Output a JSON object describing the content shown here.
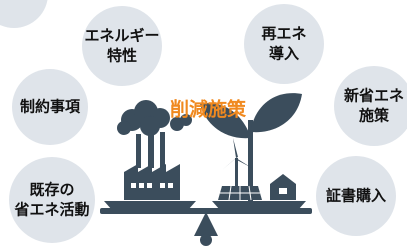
{
  "title": "削減施策",
  "items": [
    {
      "lines": [
        "エネルギー",
        "特性"
      ]
    },
    {
      "lines": [
        "制約事項"
      ]
    },
    {
      "lines": [
        "既存の",
        "省エネ活動"
      ]
    },
    {
      "lines": [
        "再エネ",
        "導入"
      ]
    },
    {
      "lines": [
        "新省エネ",
        "施策"
      ]
    },
    {
      "lines": [
        "証書購入"
      ]
    }
  ]
}
